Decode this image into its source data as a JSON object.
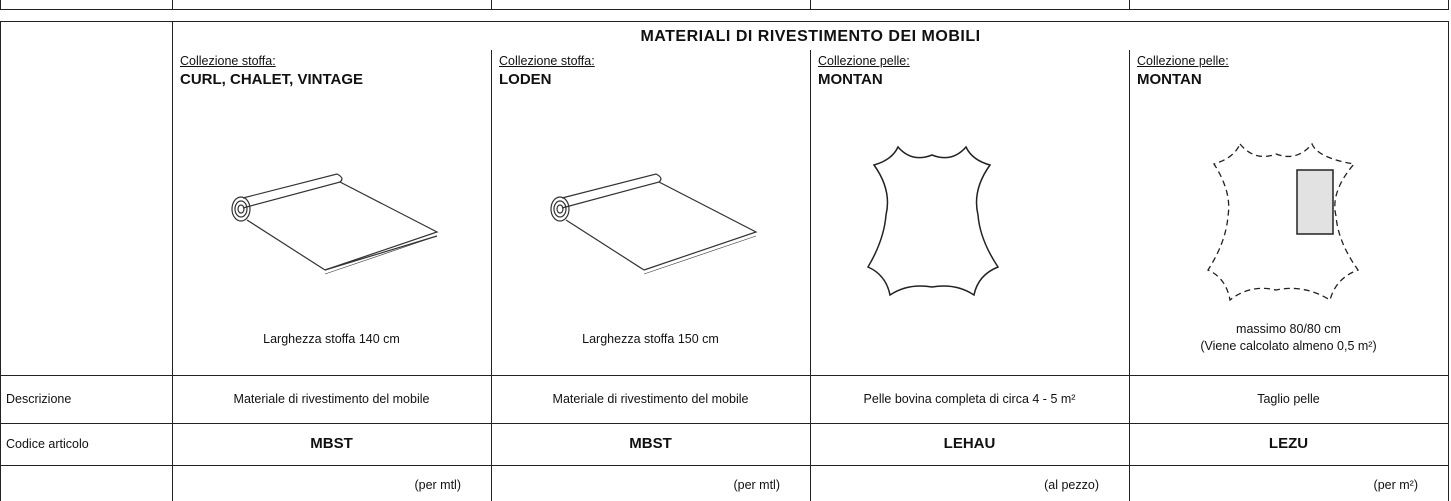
{
  "header": {
    "title": "MATERIALI DI RIVESTIMENTO DEI MOBILI"
  },
  "row_labels": {
    "description": "Descrizione",
    "code": "Codice articolo"
  },
  "columns": [
    {
      "collection_label": "Collezione stoffa:",
      "collection_name": "CURL, CHALET, VINTAGE",
      "captions": [
        "Larghezza stoffa 140 cm"
      ],
      "description": "Materiale di rivestimento del mobile",
      "code": "MBST",
      "unit": "(per mtl)"
    },
    {
      "collection_label": "Collezione stoffa:",
      "collection_name": "LODEN",
      "captions": [
        "Larghezza stoffa 150 cm"
      ],
      "description": "Materiale di rivestimento del mobile",
      "code": "MBST",
      "unit": "(per mtl)"
    },
    {
      "collection_label": "Collezione pelle:",
      "collection_name": "MONTAN",
      "captions": [],
      "description": "Pelle bovina completa di circa 4 - 5 m²",
      "code": "LEHAU",
      "unit": "(al pezzo)"
    },
    {
      "collection_label": "Collezione pelle:",
      "collection_name": "MONTAN",
      "captions": [
        "massimo 80/80 cm",
        "(Viene calcolato almeno 0,5 m²)"
      ],
      "description": "Taglio pelle",
      "code": "LEZU",
      "unit": "(per m²)"
    }
  ]
}
